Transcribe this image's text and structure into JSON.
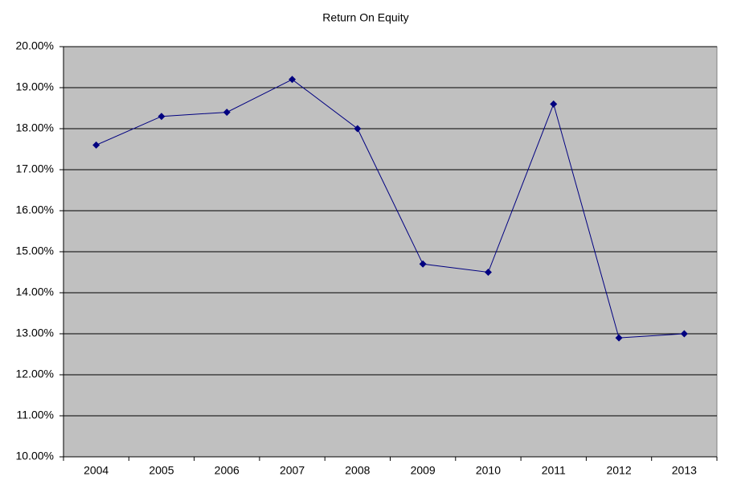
{
  "chart_data": {
    "type": "line",
    "title": "Return On Equity",
    "categories": [
      "2004",
      "2005",
      "2006",
      "2007",
      "2008",
      "2009",
      "2010",
      "2011",
      "2012",
      "2013"
    ],
    "series": [
      {
        "name": "Return On Equity",
        "color": "#000080",
        "values": [
          17.6,
          18.3,
          18.4,
          19.2,
          18.0,
          14.7,
          14.5,
          18.6,
          12.9,
          13.0
        ]
      }
    ],
    "ylim": [
      10,
      20
    ],
    "yticks": [
      {
        "value": 10,
        "label": "10.00%"
      },
      {
        "value": 11,
        "label": "11.00%"
      },
      {
        "value": 12,
        "label": "12.00%"
      },
      {
        "value": 13,
        "label": "13.00%"
      },
      {
        "value": 14,
        "label": "14.00%"
      },
      {
        "value": 15,
        "label": "15.00%"
      },
      {
        "value": 16,
        "label": "16.00%"
      },
      {
        "value": 17,
        "label": "17.00%"
      },
      {
        "value": 18,
        "label": "18.00%"
      },
      {
        "value": 19,
        "label": "19.00%"
      },
      {
        "value": 20,
        "label": "20.00%"
      }
    ],
    "grid": true
  }
}
